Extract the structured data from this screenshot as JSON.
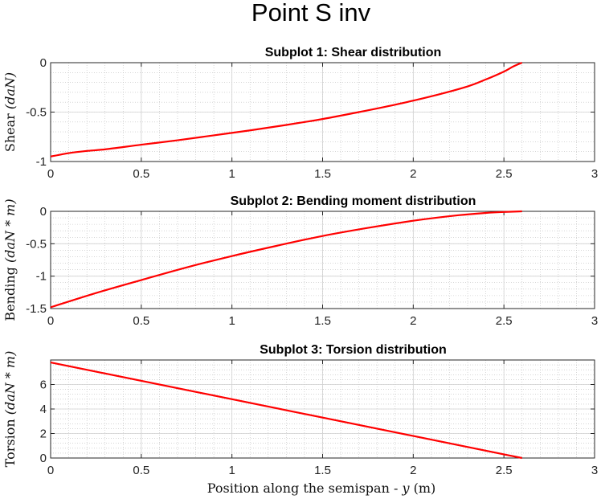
{
  "figure": {
    "title": "Point S inv"
  },
  "colors": {
    "line": "#ff0000",
    "grid_major": "#d0d0d0",
    "grid_minor": "#bdbdbd",
    "axes": "#262626"
  },
  "chart_data": [
    {
      "type": "line",
      "title": "Subplot 1: Shear distribution",
      "ylabel_text": "Shear",
      "ylabel_math": "(daN)",
      "xlabel": "",
      "xlim": [
        0,
        3
      ],
      "ylim": [
        -1,
        0
      ],
      "xticks": [
        0,
        0.5,
        1,
        1.5,
        2,
        2.5,
        3
      ],
      "xtick_labels": [
        "0",
        "0.5",
        "1",
        "1.5",
        "2",
        "2.5",
        "3"
      ],
      "yticks": [
        -1,
        -0.5,
        0
      ],
      "ytick_labels": [
        "-1",
        "-0.5",
        "0"
      ],
      "minor_grid": true,
      "series": [
        {
          "x": [
            0,
            0.1,
            0.2,
            0.3,
            0.5,
            0.7,
            0.9,
            1.1,
            1.3,
            1.5,
            1.7,
            1.9,
            2.1,
            2.3,
            2.4,
            2.5,
            2.55,
            2.6
          ],
          "y": [
            -0.95,
            -0.915,
            -0.893,
            -0.877,
            -0.83,
            -0.785,
            -0.735,
            -0.685,
            -0.63,
            -0.57,
            -0.5,
            -0.425,
            -0.34,
            -0.24,
            -0.17,
            -0.09,
            -0.04,
            0
          ]
        }
      ]
    },
    {
      "type": "line",
      "title": "Subplot 2: Bending moment distribution",
      "ylabel_text": "Bending",
      "ylabel_math": "(daN * m)",
      "xlabel": "",
      "xlim": [
        0,
        3
      ],
      "ylim": [
        -1.5,
        0
      ],
      "xticks": [
        0,
        0.5,
        1,
        1.5,
        2,
        2.5,
        3
      ],
      "xtick_labels": [
        "0",
        "0.5",
        "1",
        "1.5",
        "2",
        "2.5",
        "3"
      ],
      "yticks": [
        -1.5,
        -1,
        -0.5,
        0
      ],
      "ytick_labels": [
        "-1.5",
        "-1",
        "-0.5",
        "0"
      ],
      "minor_grid": true,
      "series": [
        {
          "x": [
            0,
            0.25,
            0.5,
            0.75,
            1,
            1.25,
            1.5,
            1.75,
            2,
            2.25,
            2.4,
            2.5,
            2.6
          ],
          "y": [
            -1.48,
            -1.26,
            -1.06,
            -0.865,
            -0.69,
            -0.53,
            -0.38,
            -0.255,
            -0.145,
            -0.06,
            -0.025,
            -0.01,
            0
          ]
        }
      ]
    },
    {
      "type": "line",
      "title": "Subplot 3: Torsion distribution",
      "ylabel_text": "Torsion",
      "ylabel_math": "(daN * m)",
      "xlabel_text": "Position along the semispan - ",
      "xlabel_math": "y",
      "xlabel_unit": " (m)",
      "xlim": [
        0,
        3
      ],
      "ylim": [
        0,
        8
      ],
      "xticks": [
        0,
        0.5,
        1,
        1.5,
        2,
        2.5,
        3
      ],
      "xtick_labels": [
        "0",
        "0.5",
        "1",
        "1.5",
        "2",
        "2.5",
        "3"
      ],
      "yticks": [
        0,
        2,
        4,
        6
      ],
      "ytick_labels": [
        "0",
        "2",
        "4",
        "6"
      ],
      "minor_grid": true,
      "series": [
        {
          "x": [
            0,
            2.6
          ],
          "y": [
            7.8,
            0
          ]
        }
      ]
    }
  ]
}
